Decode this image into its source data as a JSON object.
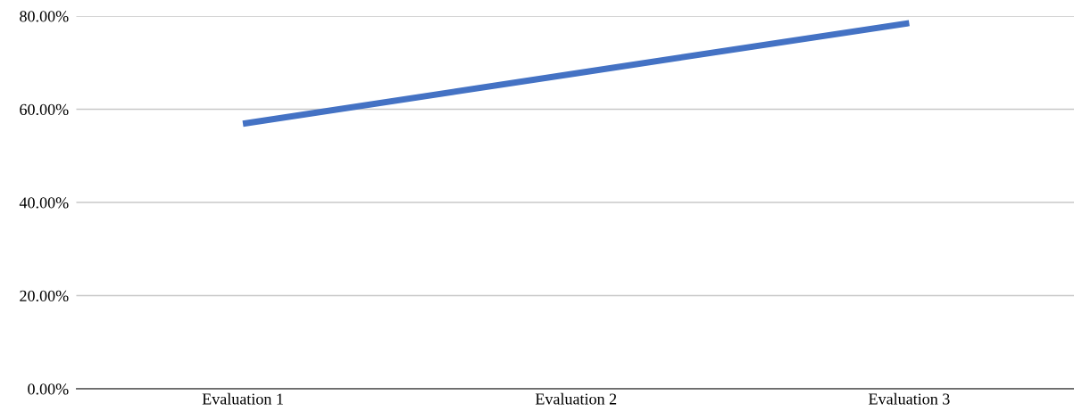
{
  "chart_data": {
    "type": "line",
    "categories": [
      "Evaluation 1",
      "Evaluation 2",
      "Evaluation 3"
    ],
    "series": [
      {
        "color": "#4472c4",
        "values": [
          56.9,
          67.7,
          78.5
        ]
      }
    ],
    "ylim": [
      0,
      80
    ],
    "yticks": [
      {
        "value": 0,
        "label": "0.00%"
      },
      {
        "value": 20,
        "label": "20.00%"
      },
      {
        "value": 40,
        "label": "40.00%"
      },
      {
        "value": 60,
        "label": "60.00%"
      },
      {
        "value": 80,
        "label": "80.00%"
      }
    ],
    "grid": "y",
    "marker": "none",
    "line_style": "solid"
  }
}
